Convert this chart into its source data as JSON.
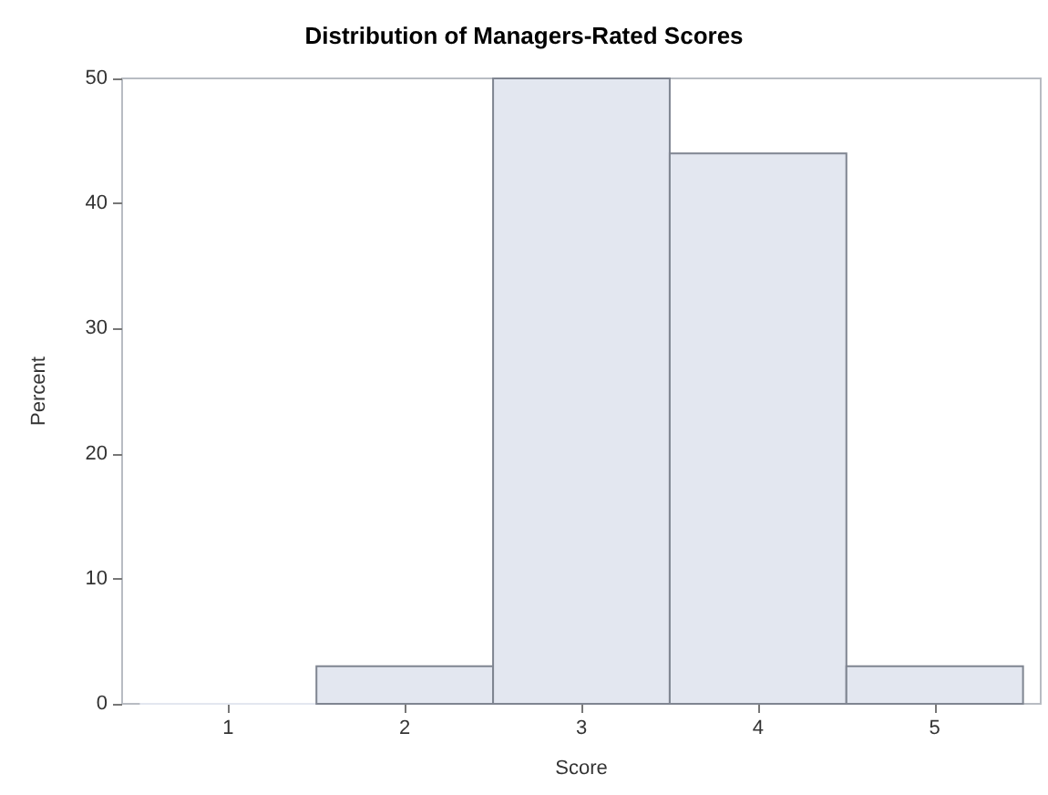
{
  "chart_data": {
    "type": "histogram",
    "title": "Distribution of Managers-Rated Scores",
    "xlabel": "Score",
    "ylabel": "Percent",
    "bins": [
      0.5,
      1.5,
      2.5,
      3.5,
      4.5,
      5.5
    ],
    "values": [
      0,
      3,
      50,
      44,
      3
    ],
    "color": "#e3e7f0",
    "xlim": [
      0.4,
      5.6
    ],
    "xticks": [
      1,
      2,
      3,
      4,
      5
    ],
    "ylim": [
      0,
      50
    ],
    "yticks": [
      0,
      10,
      20,
      30,
      40,
      50
    ],
    "grid": false
  }
}
